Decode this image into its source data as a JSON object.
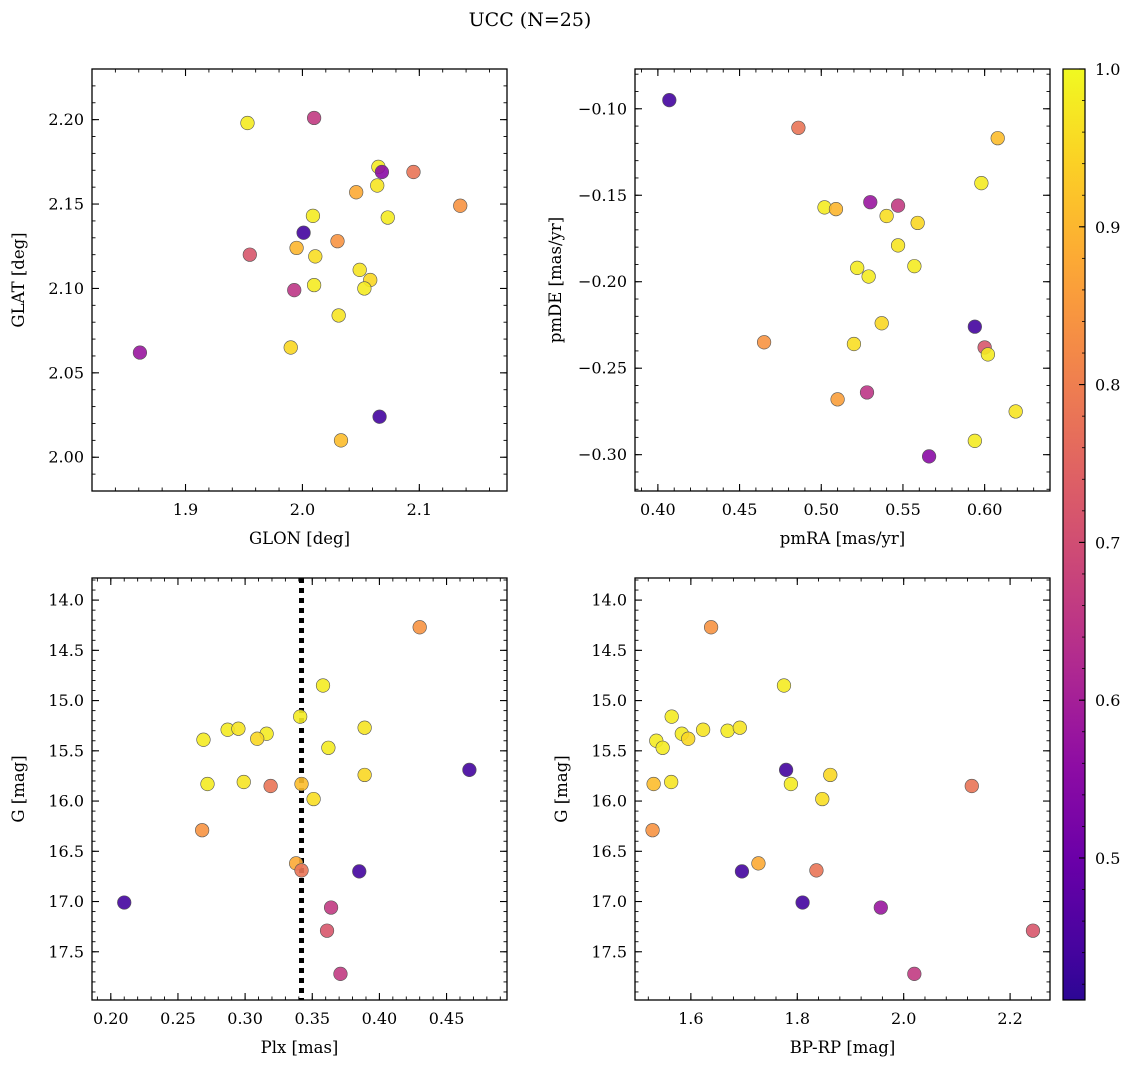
{
  "chart_data": [
    {
      "type": "scatter",
      "title": "UCC (N=25)",
      "xlabel": "GLON [deg]",
      "ylabel": "GLAT [deg]",
      "xlim": [
        1.82,
        2.175
      ],
      "ylim": [
        1.98,
        2.23
      ],
      "xticks": [
        1.9,
        2.0,
        2.1
      ],
      "yticks": [
        2.0,
        2.05,
        2.1,
        2.15,
        2.2
      ],
      "points": [
        {
          "x": 1.953,
          "y": 2.198,
          "c": 0.98
        },
        {
          "x": 2.01,
          "y": 2.201,
          "c": 0.66
        },
        {
          "x": 2.065,
          "y": 2.172,
          "c": 0.98
        },
        {
          "x": 2.068,
          "y": 2.169,
          "c": 0.55
        },
        {
          "x": 2.095,
          "y": 2.169,
          "c": 0.78
        },
        {
          "x": 2.064,
          "y": 2.161,
          "c": 0.97
        },
        {
          "x": 2.046,
          "y": 2.157,
          "c": 0.88
        },
        {
          "x": 2.135,
          "y": 2.149,
          "c": 0.84
        },
        {
          "x": 2.009,
          "y": 2.143,
          "c": 0.98
        },
        {
          "x": 2.073,
          "y": 2.142,
          "c": 0.98
        },
        {
          "x": 2.001,
          "y": 2.133,
          "c": 0.44
        },
        {
          "x": 2.03,
          "y": 2.128,
          "c": 0.84
        },
        {
          "x": 1.995,
          "y": 2.124,
          "c": 0.9
        },
        {
          "x": 2.011,
          "y": 2.119,
          "c": 0.96
        },
        {
          "x": 1.955,
          "y": 2.12,
          "c": 0.72
        },
        {
          "x": 2.049,
          "y": 2.111,
          "c": 0.97
        },
        {
          "x": 2.058,
          "y": 2.105,
          "c": 0.95
        },
        {
          "x": 2.01,
          "y": 2.102,
          "c": 0.98
        },
        {
          "x": 2.053,
          "y": 2.1,
          "c": 0.98
        },
        {
          "x": 1.993,
          "y": 2.099,
          "c": 0.65
        },
        {
          "x": 2.031,
          "y": 2.084,
          "c": 0.97
        },
        {
          "x": 1.99,
          "y": 2.065,
          "c": 0.95
        },
        {
          "x": 1.861,
          "y": 2.062,
          "c": 0.58
        },
        {
          "x": 2.066,
          "y": 2.024,
          "c": 0.44
        },
        {
          "x": 2.033,
          "y": 2.01,
          "c": 0.91
        }
      ]
    },
    {
      "type": "scatter",
      "xlabel": "pmRA [mas/yr]",
      "ylabel": "pmDE [mas/yr]",
      "xlim": [
        0.386,
        0.64
      ],
      "ylim": [
        -0.321,
        -0.077
      ],
      "xticks": [
        0.4,
        0.45,
        0.5,
        0.55,
        0.6
      ],
      "yticks": [
        -0.1,
        -0.15,
        -0.2,
        -0.25,
        -0.3
      ],
      "points": [
        {
          "x": 0.407,
          "y": -0.095,
          "c": 0.44
        },
        {
          "x": 0.486,
          "y": -0.111,
          "c": 0.78
        },
        {
          "x": 0.608,
          "y": -0.117,
          "c": 0.91
        },
        {
          "x": 0.598,
          "y": -0.143,
          "c": 0.98
        },
        {
          "x": 0.53,
          "y": -0.154,
          "c": 0.58
        },
        {
          "x": 0.547,
          "y": -0.156,
          "c": 0.66
        },
        {
          "x": 0.502,
          "y": -0.157,
          "c": 0.98
        },
        {
          "x": 0.509,
          "y": -0.158,
          "c": 0.9
        },
        {
          "x": 0.54,
          "y": -0.162,
          "c": 0.96
        },
        {
          "x": 0.559,
          "y": -0.166,
          "c": 0.95
        },
        {
          "x": 0.547,
          "y": -0.179,
          "c": 0.97
        },
        {
          "x": 0.557,
          "y": -0.191,
          "c": 0.98
        },
        {
          "x": 0.522,
          "y": -0.192,
          "c": 0.98
        },
        {
          "x": 0.529,
          "y": -0.197,
          "c": 0.98
        },
        {
          "x": 0.537,
          "y": -0.224,
          "c": 0.95
        },
        {
          "x": 0.594,
          "y": -0.226,
          "c": 0.44
        },
        {
          "x": 0.465,
          "y": -0.235,
          "c": 0.84
        },
        {
          "x": 0.52,
          "y": -0.236,
          "c": 0.96
        },
        {
          "x": 0.6,
          "y": -0.238,
          "c": 0.72
        },
        {
          "x": 0.602,
          "y": -0.242,
          "c": 0.98
        },
        {
          "x": 0.528,
          "y": -0.264,
          "c": 0.65
        },
        {
          "x": 0.51,
          "y": -0.268,
          "c": 0.86
        },
        {
          "x": 0.619,
          "y": -0.275,
          "c": 0.97
        },
        {
          "x": 0.594,
          "y": -0.292,
          "c": 0.98
        },
        {
          "x": 0.566,
          "y": -0.301,
          "c": 0.55
        }
      ]
    },
    {
      "type": "scatter",
      "xlabel": "Plx [mas]",
      "ylabel": "G [mag]",
      "xlim": [
        0.186,
        0.495
      ],
      "ylim": [
        17.98,
        13.78
      ],
      "y_inverted": true,
      "xticks": [
        0.2,
        0.25,
        0.3,
        0.35,
        0.4,
        0.45
      ],
      "yticks": [
        14.0,
        14.5,
        15.0,
        15.5,
        16.0,
        16.5,
        17.0,
        17.5
      ],
      "vline": {
        "x": 0.342,
        "style": "dotted",
        "color": "#000000"
      },
      "points": [
        {
          "x": 0.43,
          "y": 14.27,
          "c": 0.84
        },
        {
          "x": 0.358,
          "y": 14.85,
          "c": 0.98
        },
        {
          "x": 0.341,
          "y": 15.16,
          "c": 0.98
        },
        {
          "x": 0.287,
          "y": 15.29,
          "c": 0.98
        },
        {
          "x": 0.295,
          "y": 15.28,
          "c": 0.97
        },
        {
          "x": 0.389,
          "y": 15.27,
          "c": 0.97
        },
        {
          "x": 0.316,
          "y": 15.33,
          "c": 0.98
        },
        {
          "x": 0.269,
          "y": 15.39,
          "c": 0.98
        },
        {
          "x": 0.309,
          "y": 15.38,
          "c": 0.95
        },
        {
          "x": 0.362,
          "y": 15.47,
          "c": 0.98
        },
        {
          "x": 0.467,
          "y": 15.69,
          "c": 0.44
        },
        {
          "x": 0.389,
          "y": 15.74,
          "c": 0.95
        },
        {
          "x": 0.299,
          "y": 15.81,
          "c": 0.97
        },
        {
          "x": 0.272,
          "y": 15.83,
          "c": 0.98
        },
        {
          "x": 0.342,
          "y": 15.83,
          "c": 0.91
        },
        {
          "x": 0.319,
          "y": 15.85,
          "c": 0.78
        },
        {
          "x": 0.351,
          "y": 15.98,
          "c": 0.96
        },
        {
          "x": 0.268,
          "y": 16.29,
          "c": 0.84
        },
        {
          "x": 0.338,
          "y": 16.62,
          "c": 0.88
        },
        {
          "x": 0.342,
          "y": 16.69,
          "c": 0.78
        },
        {
          "x": 0.385,
          "y": 16.7,
          "c": 0.44
        },
        {
          "x": 0.21,
          "y": 17.01,
          "c": 0.44
        },
        {
          "x": 0.364,
          "y": 17.06,
          "c": 0.66
        },
        {
          "x": 0.361,
          "y": 17.29,
          "c": 0.72
        },
        {
          "x": 0.371,
          "y": 17.72,
          "c": 0.66
        }
      ]
    },
    {
      "type": "scatter",
      "xlabel": "BP-RP [mag]",
      "ylabel": "G [mag]",
      "xlim": [
        1.495,
        2.275
      ],
      "ylim": [
        17.98,
        13.78
      ],
      "y_inverted": true,
      "xticks": [
        1.6,
        1.8,
        2.0,
        2.2
      ],
      "yticks": [
        14.0,
        14.5,
        15.0,
        15.5,
        16.0,
        16.5,
        17.0,
        17.5
      ],
      "points": [
        {
          "x": 1.638,
          "y": 14.27,
          "c": 0.84
        },
        {
          "x": 1.775,
          "y": 14.85,
          "c": 0.98
        },
        {
          "x": 1.564,
          "y": 15.16,
          "c": 0.98
        },
        {
          "x": 1.623,
          "y": 15.29,
          "c": 0.97
        },
        {
          "x": 1.669,
          "y": 15.3,
          "c": 0.98
        },
        {
          "x": 1.692,
          "y": 15.27,
          "c": 0.97
        },
        {
          "x": 1.583,
          "y": 15.33,
          "c": 0.98
        },
        {
          "x": 1.535,
          "y": 15.4,
          "c": 0.98
        },
        {
          "x": 1.595,
          "y": 15.38,
          "c": 0.95
        },
        {
          "x": 1.547,
          "y": 15.47,
          "c": 0.98
        },
        {
          "x": 1.779,
          "y": 15.69,
          "c": 0.44
        },
        {
          "x": 1.862,
          "y": 15.74,
          "c": 0.95
        },
        {
          "x": 1.563,
          "y": 15.81,
          "c": 0.97
        },
        {
          "x": 1.53,
          "y": 15.83,
          "c": 0.91
        },
        {
          "x": 1.788,
          "y": 15.83,
          "c": 0.98
        },
        {
          "x": 2.128,
          "y": 15.85,
          "c": 0.78
        },
        {
          "x": 1.847,
          "y": 15.98,
          "c": 0.96
        },
        {
          "x": 1.528,
          "y": 16.29,
          "c": 0.84
        },
        {
          "x": 1.727,
          "y": 16.62,
          "c": 0.88
        },
        {
          "x": 1.836,
          "y": 16.69,
          "c": 0.78
        },
        {
          "x": 1.696,
          "y": 16.7,
          "c": 0.44
        },
        {
          "x": 1.81,
          "y": 17.01,
          "c": 0.44
        },
        {
          "x": 1.957,
          "y": 17.06,
          "c": 0.58
        },
        {
          "x": 2.243,
          "y": 17.29,
          "c": 0.72
        },
        {
          "x": 2.02,
          "y": 17.72,
          "c": 0.66
        }
      ]
    }
  ],
  "colorbar": {
    "colormap": "plasma",
    "range": [
      0.41,
      1.0
    ],
    "ticks": [
      0.5,
      0.6,
      0.7,
      0.8,
      0.9,
      1.0
    ],
    "tick_labels": [
      "0.5",
      "0.6",
      "0.7",
      "0.8",
      "0.9",
      "1.0"
    ]
  }
}
